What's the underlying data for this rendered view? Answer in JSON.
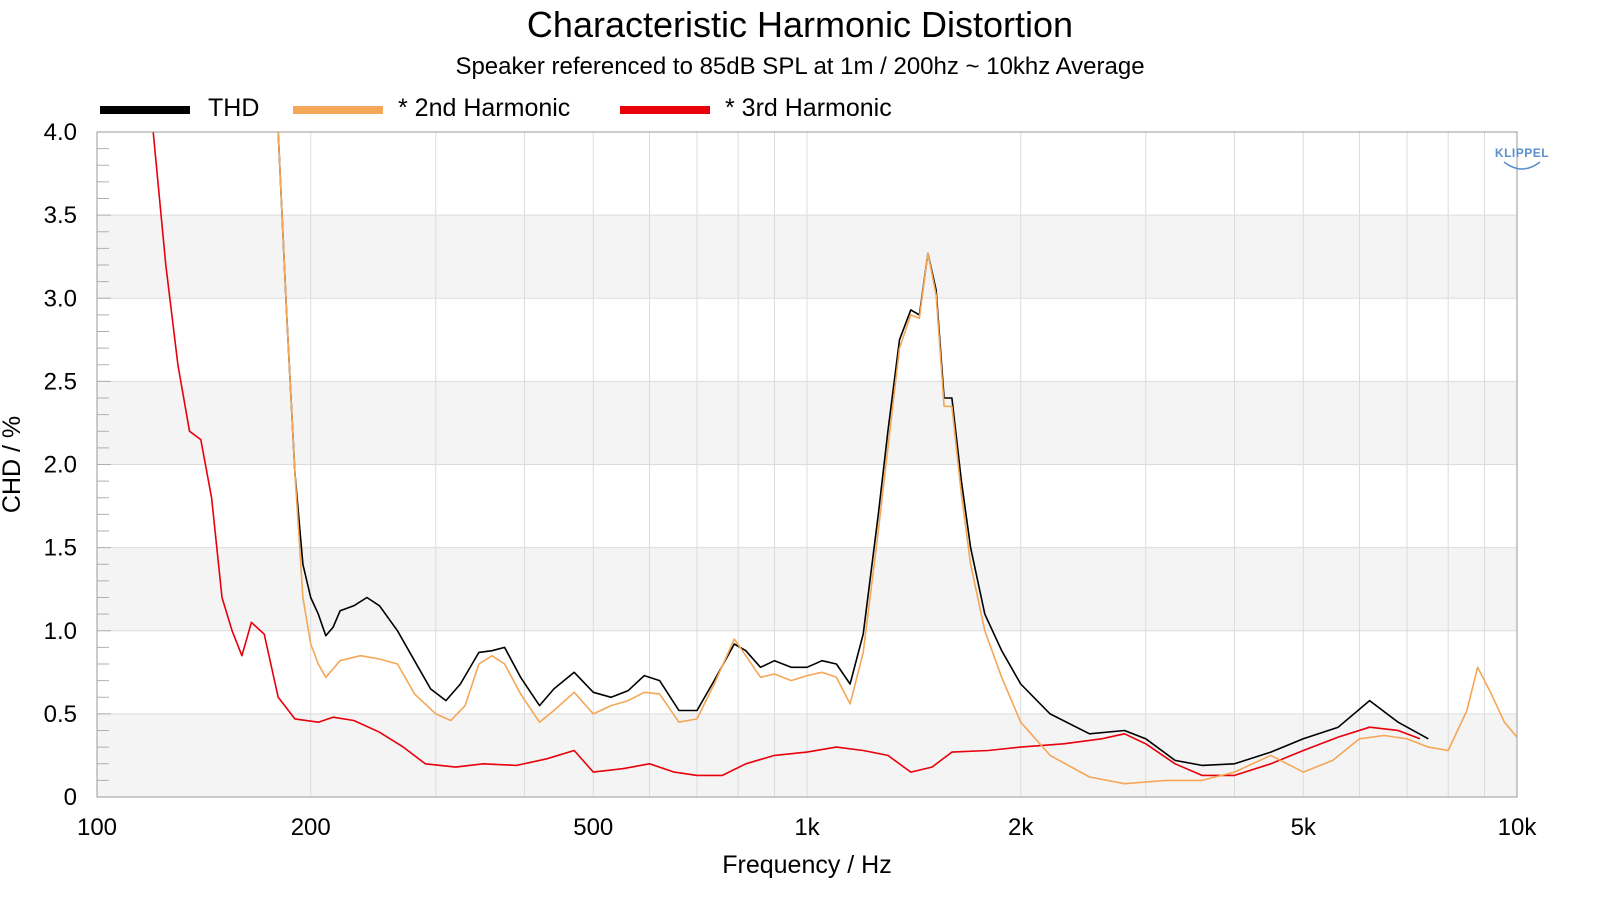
{
  "chart_data": {
    "type": "line",
    "title": "Characteristic Harmonic Distortion",
    "subtitle": "Speaker referenced to 85dB SPL at 1m / 200hz ~ 10khz Average",
    "xlabel": "Frequency / Hz",
    "ylabel": "CHD / %",
    "xscale": "log",
    "xlim": [
      100,
      10000
    ],
    "ylim": [
      0,
      4.0
    ],
    "x_ticks": [
      100,
      200,
      500,
      1000,
      2000,
      5000,
      10000
    ],
    "x_tick_labels": [
      "100",
      "200",
      "500",
      "1k",
      "2k",
      "5k",
      "10k"
    ],
    "y_ticks": [
      0,
      0.5,
      1.0,
      1.5,
      2.0,
      2.5,
      3.0,
      3.5,
      4.0
    ],
    "y_tick_labels": [
      "0",
      "0.5",
      "1.0",
      "1.5",
      "2.0",
      "2.5",
      "3.0",
      "3.5",
      "4.0"
    ],
    "grid": true,
    "legend_position": "top-left",
    "watermark": "KLIPPEL",
    "series": [
      {
        "name": "THD",
        "color": "#000000",
        "points": [
          [
            180,
            4.0
          ],
          [
            185,
            2.9
          ],
          [
            190,
            1.95
          ],
          [
            195,
            1.4
          ],
          [
            200,
            1.2
          ],
          [
            205,
            1.1
          ],
          [
            210,
            0.97
          ],
          [
            215,
            1.02
          ],
          [
            220,
            1.12
          ],
          [
            230,
            1.15
          ],
          [
            240,
            1.2
          ],
          [
            250,
            1.15
          ],
          [
            265,
            1.0
          ],
          [
            280,
            0.82
          ],
          [
            295,
            0.65
          ],
          [
            310,
            0.58
          ],
          [
            325,
            0.68
          ],
          [
            345,
            0.87
          ],
          [
            360,
            0.88
          ],
          [
            375,
            0.9
          ],
          [
            395,
            0.72
          ],
          [
            420,
            0.55
          ],
          [
            440,
            0.65
          ],
          [
            470,
            0.75
          ],
          [
            500,
            0.63
          ],
          [
            530,
            0.6
          ],
          [
            560,
            0.64
          ],
          [
            590,
            0.73
          ],
          [
            620,
            0.7
          ],
          [
            660,
            0.52
          ],
          [
            700,
            0.52
          ],
          [
            740,
            0.7
          ],
          [
            790,
            0.92
          ],
          [
            820,
            0.88
          ],
          [
            860,
            0.78
          ],
          [
            900,
            0.82
          ],
          [
            950,
            0.78
          ],
          [
            1000,
            0.78
          ],
          [
            1050,
            0.82
          ],
          [
            1100,
            0.8
          ],
          [
            1150,
            0.68
          ],
          [
            1200,
            0.98
          ],
          [
            1260,
            1.7
          ],
          [
            1300,
            2.2
          ],
          [
            1350,
            2.75
          ],
          [
            1400,
            2.93
          ],
          [
            1440,
            2.9
          ],
          [
            1480,
            3.27
          ],
          [
            1520,
            3.05
          ],
          [
            1560,
            2.4
          ],
          [
            1600,
            2.4
          ],
          [
            1650,
            1.9
          ],
          [
            1700,
            1.5
          ],
          [
            1780,
            1.1
          ],
          [
            1880,
            0.88
          ],
          [
            2000,
            0.68
          ],
          [
            2200,
            0.5
          ],
          [
            2500,
            0.38
          ],
          [
            2800,
            0.4
          ],
          [
            3000,
            0.35
          ],
          [
            3300,
            0.22
          ],
          [
            3600,
            0.19
          ],
          [
            4000,
            0.2
          ],
          [
            4500,
            0.27
          ],
          [
            5000,
            0.35
          ],
          [
            5600,
            0.42
          ],
          [
            6200,
            0.58
          ],
          [
            6800,
            0.45
          ],
          [
            7500,
            0.35
          ]
        ]
      },
      {
        "name": "* 2nd Harmonic",
        "color": "#f5a657",
        "points": [
          [
            180,
            4.0
          ],
          [
            185,
            2.9
          ],
          [
            190,
            1.95
          ],
          [
            195,
            1.2
          ],
          [
            200,
            0.92
          ],
          [
            205,
            0.8
          ],
          [
            210,
            0.72
          ],
          [
            220,
            0.82
          ],
          [
            235,
            0.85
          ],
          [
            250,
            0.83
          ],
          [
            265,
            0.8
          ],
          [
            280,
            0.62
          ],
          [
            300,
            0.5
          ],
          [
            315,
            0.46
          ],
          [
            330,
            0.55
          ],
          [
            345,
            0.8
          ],
          [
            360,
            0.85
          ],
          [
            375,
            0.8
          ],
          [
            395,
            0.62
          ],
          [
            420,
            0.45
          ],
          [
            440,
            0.52
          ],
          [
            470,
            0.63
          ],
          [
            500,
            0.5
          ],
          [
            530,
            0.55
          ],
          [
            560,
            0.58
          ],
          [
            590,
            0.63
          ],
          [
            620,
            0.62
          ],
          [
            660,
            0.45
          ],
          [
            700,
            0.47
          ],
          [
            740,
            0.68
          ],
          [
            790,
            0.95
          ],
          [
            820,
            0.85
          ],
          [
            860,
            0.72
          ],
          [
            900,
            0.74
          ],
          [
            950,
            0.7
          ],
          [
            1000,
            0.73
          ],
          [
            1050,
            0.75
          ],
          [
            1100,
            0.72
          ],
          [
            1150,
            0.56
          ],
          [
            1200,
            0.87
          ],
          [
            1260,
            1.6
          ],
          [
            1300,
            2.1
          ],
          [
            1350,
            2.7
          ],
          [
            1400,
            2.9
          ],
          [
            1440,
            2.88
          ],
          [
            1480,
            3.27
          ],
          [
            1520,
            3.02
          ],
          [
            1560,
            2.35
          ],
          [
            1600,
            2.35
          ],
          [
            1650,
            1.82
          ],
          [
            1700,
            1.4
          ],
          [
            1780,
            1.0
          ],
          [
            1880,
            0.72
          ],
          [
            2000,
            0.45
          ],
          [
            2200,
            0.25
          ],
          [
            2500,
            0.12
          ],
          [
            2800,
            0.08
          ],
          [
            3200,
            0.1
          ],
          [
            3600,
            0.1
          ],
          [
            4000,
            0.15
          ],
          [
            4500,
            0.25
          ],
          [
            5000,
            0.15
          ],
          [
            5500,
            0.22
          ],
          [
            6000,
            0.35
          ],
          [
            6500,
            0.37
          ],
          [
            7000,
            0.35
          ],
          [
            7500,
            0.3
          ],
          [
            8000,
            0.28
          ],
          [
            8500,
            0.52
          ],
          [
            8800,
            0.78
          ],
          [
            9200,
            0.62
          ],
          [
            9600,
            0.45
          ],
          [
            10000,
            0.36
          ]
        ]
      },
      {
        "name": "* 3rd Harmonic",
        "color": "#e8000b",
        "points": [
          [
            120,
            4.0
          ],
          [
            125,
            3.2
          ],
          [
            130,
            2.6
          ],
          [
            135,
            2.2
          ],
          [
            140,
            2.15
          ],
          [
            145,
            1.8
          ],
          [
            150,
            1.2
          ],
          [
            155,
            1.0
          ],
          [
            160,
            0.85
          ],
          [
            165,
            1.05
          ],
          [
            172,
            0.98
          ],
          [
            180,
            0.6
          ],
          [
            190,
            0.47
          ],
          [
            205,
            0.45
          ],
          [
            215,
            0.48
          ],
          [
            230,
            0.46
          ],
          [
            250,
            0.39
          ],
          [
            270,
            0.3
          ],
          [
            290,
            0.2
          ],
          [
            320,
            0.18
          ],
          [
            350,
            0.2
          ],
          [
            390,
            0.19
          ],
          [
            430,
            0.23
          ],
          [
            470,
            0.28
          ],
          [
            500,
            0.15
          ],
          [
            550,
            0.17
          ],
          [
            600,
            0.2
          ],
          [
            650,
            0.15
          ],
          [
            700,
            0.13
          ],
          [
            760,
            0.13
          ],
          [
            820,
            0.2
          ],
          [
            900,
            0.25
          ],
          [
            1000,
            0.27
          ],
          [
            1100,
            0.3
          ],
          [
            1200,
            0.28
          ],
          [
            1300,
            0.25
          ],
          [
            1400,
            0.15
          ],
          [
            1500,
            0.18
          ],
          [
            1600,
            0.27
          ],
          [
            1800,
            0.28
          ],
          [
            2000,
            0.3
          ],
          [
            2300,
            0.32
          ],
          [
            2600,
            0.35
          ],
          [
            2800,
            0.38
          ],
          [
            3000,
            0.32
          ],
          [
            3300,
            0.2
          ],
          [
            3600,
            0.13
          ],
          [
            4000,
            0.13
          ],
          [
            4500,
            0.2
          ],
          [
            5000,
            0.28
          ],
          [
            5600,
            0.36
          ],
          [
            6200,
            0.42
          ],
          [
            6800,
            0.4
          ],
          [
            7300,
            0.35
          ]
        ]
      }
    ]
  }
}
